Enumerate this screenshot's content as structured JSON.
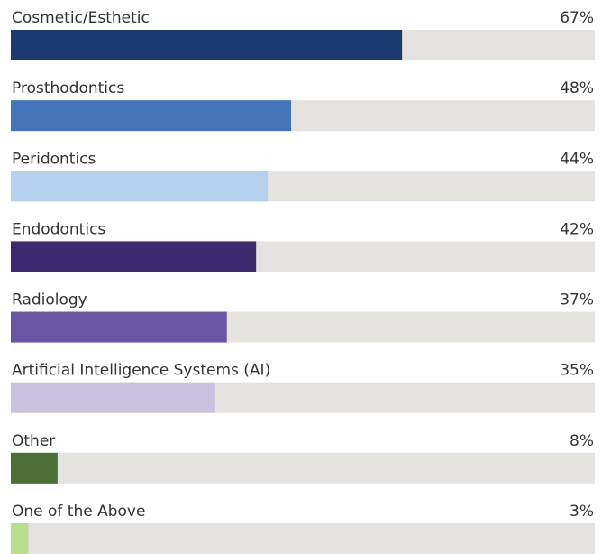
{
  "chart_data": {
    "type": "bar",
    "orientation": "horizontal",
    "categories": [
      "Cosmetic/Esthetic",
      "Prosthodontics",
      "Peridontics",
      "Endodontics",
      "Radiology",
      "Artificial Intelligence Systems (AI)",
      "Other",
      "One of the Above"
    ],
    "values": [
      67,
      48,
      44,
      42,
      37,
      35,
      8,
      3
    ],
    "value_labels": [
      "67%",
      "48%",
      "44%",
      "42%",
      "37%",
      "35%",
      "8%",
      "3%"
    ],
    "colors": [
      "#1b3a6f",
      "#4475ba",
      "#b3d0ec",
      "#3d2a6e",
      "#6a55a4",
      "#cbc2e1",
      "#4a6e35",
      "#badd8b"
    ],
    "track_color": "#e5e3df",
    "xlim": [
      0,
      100
    ]
  }
}
